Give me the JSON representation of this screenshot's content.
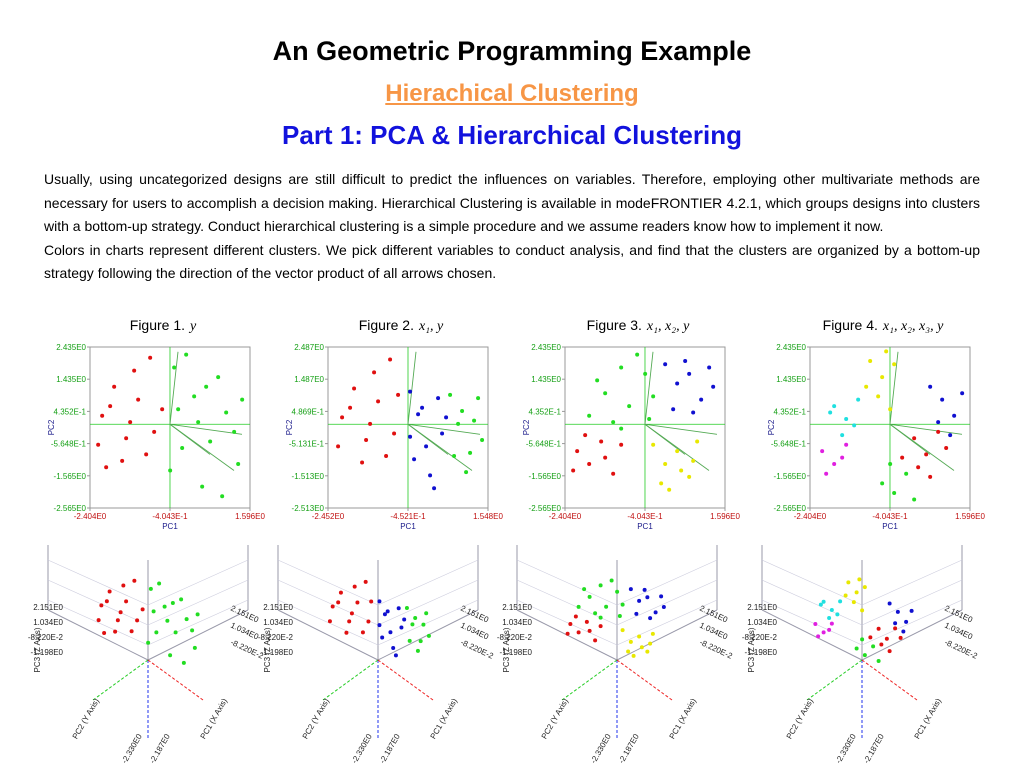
{
  "header": {
    "title": "An Geometric Programming Example",
    "subtitle": "Hierachical Clustering",
    "heading": "Part 1: PCA & Hierarchical Clustering"
  },
  "paragraphs": [
    "Usually, using uncategorized designs are still difficult to predict the influences on variables. Therefore, employing other multivariate methods are necessary for users to accomplish a decision making.  Hierarchical Clustering is available in modeFRONTIER 4.2.1, which groups designs into clusters with a bottom-up strategy.  Conduct hierarchical clustering is a simple procedure and we assume readers know how to implement it now.",
    "Colors in charts represent different clusters. We pick different variables to conduct analysis, and find that the clusters are organized by a bottom-up strategy following the direction of the vector product of all arrows chosen."
  ],
  "chart_data": [
    {
      "type": "scatter",
      "title": "Figure 1.",
      "variables": "y",
      "xlabel": "PC1",
      "ylabel": "PC2",
      "xlim": [
        -2.404,
        1.596
      ],
      "ylim": [
        -2.565,
        2.435
      ],
      "xticks": [
        {
          "value": -2.404,
          "label": "-2.404E0"
        },
        {
          "value": -0.4043,
          "label": "-4.043E-1"
        },
        {
          "value": 1.596,
          "label": "1.596E0"
        }
      ],
      "yticks": [
        {
          "value": 2.435,
          "label": "2.435E0"
        },
        {
          "value": 1.435,
          "label": "1.435E0"
        },
        {
          "value": 0.4352,
          "label": "4.352E-1"
        },
        {
          "value": -0.5648,
          "label": "-5.648E-1"
        },
        {
          "value": -1.565,
          "label": "-1.565E0"
        },
        {
          "value": -2.565,
          "label": "-2.565E0"
        }
      ],
      "series": [
        {
          "color": "#e01010",
          "x": [
            -2.1,
            -1.8,
            -1.5,
            -1.2,
            -0.9,
            -1.6,
            -2.2,
            -0.8,
            -1.3,
            -1.9,
            -0.6,
            -1.0,
            -1.4,
            -2.0
          ],
          "values": [
            0.3,
            1.2,
            -0.4,
            0.8,
            2.1,
            -1.1,
            -0.6,
            -0.2,
            1.7,
            0.6,
            0.5,
            -0.9,
            0.1,
            -1.3
          ]
        },
        {
          "color": "#22dd22",
          "x": [
            -0.3,
            0.2,
            0.6,
            1.0,
            1.3,
            0.4,
            -0.1,
            0.8,
            1.4,
            0.0,
            -0.4,
            0.9,
            0.3,
            1.2,
            0.5,
            -0.2
          ],
          "values": [
            1.8,
            0.9,
            -0.5,
            0.4,
            -1.2,
            -1.9,
            -0.7,
            1.5,
            0.8,
            2.2,
            -1.4,
            -2.2,
            0.1,
            -0.2,
            1.2,
            0.5
          ]
        }
      ]
    },
    {
      "type": "scatter",
      "title": "Figure 2.",
      "variables": "x₁, y",
      "xlabel": "PC1",
      "ylabel": "PC2",
      "xlim": [
        -2.452,
        1.548
      ],
      "ylim": [
        -2.513,
        2.487
      ],
      "xticks": [
        {
          "value": -2.452,
          "label": "-2.452E0"
        },
        {
          "value": -0.4521,
          "label": "-4.521E-1"
        },
        {
          "value": 1.548,
          "label": "1.548E0"
        }
      ],
      "yticks": [
        {
          "value": 2.487,
          "label": "2.487E0"
        },
        {
          "value": 1.487,
          "label": "1.487E0"
        },
        {
          "value": 0.4869,
          "label": "4.869E-1"
        },
        {
          "value": -0.5131,
          "label": "-5.131E-1"
        },
        {
          "value": -1.513,
          "label": "-1.513E0"
        },
        {
          "value": -2.513,
          "label": "-2.513E0"
        }
      ],
      "series": [
        {
          "color": "#e01010",
          "x": [
            -2.1,
            -1.8,
            -1.5,
            -1.2,
            -0.9,
            -1.6,
            -2.2,
            -0.8,
            -1.3,
            -1.9,
            -0.7,
            -1.0,
            -1.4
          ],
          "values": [
            0.3,
            1.2,
            -0.4,
            0.8,
            2.1,
            -1.1,
            -0.6,
            -0.2,
            1.7,
            0.6,
            1.0,
            -0.9,
            0.1
          ]
        },
        {
          "color": "#1010d0",
          "x": [
            -0.4,
            -0.2,
            0.0,
            0.3,
            0.1,
            -0.3,
            0.4,
            -0.1,
            0.2,
            0.5,
            -0.4
          ],
          "values": [
            1.1,
            0.4,
            -0.6,
            0.9,
            -1.5,
            -1.0,
            -0.2,
            0.6,
            -1.9,
            0.3,
            -0.3
          ]
        },
        {
          "color": "#22dd22",
          "x": [
            0.6,
            0.9,
            1.2,
            1.4,
            0.7,
            1.0,
            1.3,
            0.8,
            1.1
          ],
          "values": [
            1.0,
            0.5,
            0.2,
            -0.4,
            -0.9,
            -1.4,
            0.9,
            0.1,
            -0.8
          ]
        }
      ]
    },
    {
      "type": "scatter",
      "title": "Figure 3.",
      "variables": "x₁,  x₂,  y",
      "xlabel": "PC1",
      "ylabel": "PC2",
      "xlim": [
        -2.404,
        1.596
      ],
      "ylim": [
        -2.565,
        2.435
      ],
      "xticks": [
        {
          "value": -2.404,
          "label": "-2.404E0"
        },
        {
          "value": -0.4043,
          "label": "-4.043E-1"
        },
        {
          "value": 1.596,
          "label": "1.596E0"
        }
      ],
      "yticks": [
        {
          "value": 2.435,
          "label": "2.435E0"
        },
        {
          "value": 1.435,
          "label": "1.435E0"
        },
        {
          "value": 0.4352,
          "label": "4.352E-1"
        },
        {
          "value": -0.5648,
          "label": "-5.648E-1"
        },
        {
          "value": -1.565,
          "label": "-1.565E0"
        },
        {
          "value": -2.565,
          "label": "-2.565E0"
        }
      ],
      "series": [
        {
          "color": "#e01010",
          "x": [
            -2.1,
            -1.8,
            -1.5,
            -1.2,
            -1.9,
            -1.4,
            -2.2,
            -1.0
          ],
          "values": [
            -0.8,
            -1.2,
            -0.5,
            -1.5,
            -0.3,
            -1.0,
            -1.4,
            -0.6
          ]
        },
        {
          "color": "#22dd22",
          "x": [
            -1.8,
            -1.4,
            -1.0,
            -0.6,
            -0.2,
            -1.6,
            -1.2,
            -0.8,
            -0.4,
            -1.0,
            -0.3
          ],
          "values": [
            0.3,
            1.0,
            1.8,
            2.2,
            0.9,
            1.4,
            0.1,
            0.6,
            1.6,
            -0.1,
            0.2
          ]
        },
        {
          "color": "#1010d0",
          "x": [
            0.1,
            0.4,
            0.7,
            1.0,
            1.3,
            0.3,
            0.8,
            1.2,
            0.6
          ],
          "values": [
            1.9,
            1.3,
            1.6,
            0.8,
            1.2,
            0.5,
            0.4,
            1.8,
            2.0
          ]
        },
        {
          "color": "#e8e800",
          "x": [
            -0.2,
            0.1,
            0.4,
            0.7,
            0.9,
            0.2,
            0.5,
            0.0,
            0.8
          ],
          "values": [
            -0.6,
            -1.2,
            -0.8,
            -1.6,
            -0.5,
            -2.0,
            -1.4,
            -1.8,
            -1.1
          ]
        }
      ]
    },
    {
      "type": "scatter",
      "title": "Figure 4.",
      "variables": "x₁,  x₂,  x₃,  y",
      "xlabel": "PC1",
      "ylabel": "PC2",
      "xlim": [
        -2.404,
        1.596
      ],
      "ylim": [
        -2.565,
        2.435
      ],
      "xticks": [
        {
          "value": -2.404,
          "label": "-2.404E0"
        },
        {
          "value": -0.4043,
          "label": "-4.043E-1"
        },
        {
          "value": 1.596,
          "label": "1.596E0"
        }
      ],
      "yticks": [
        {
          "value": 2.435,
          "label": "2.435E0"
        },
        {
          "value": 1.435,
          "label": "1.435E0"
        },
        {
          "value": 0.4352,
          "label": "4.352E-1"
        },
        {
          "value": -0.5648,
          "label": "-5.648E-1"
        },
        {
          "value": -1.565,
          "label": "-1.565E0"
        },
        {
          "value": -2.565,
          "label": "-2.565E0"
        }
      ],
      "series": [
        {
          "color": "#e8e800",
          "x": [
            -0.9,
            -0.6,
            -0.3,
            -0.7,
            -0.4,
            -1.0,
            -0.5
          ],
          "values": [
            2.0,
            1.5,
            1.9,
            0.9,
            0.5,
            1.2,
            2.3
          ]
        },
        {
          "color": "#20e0e0",
          "x": [
            -1.8,
            -1.5,
            -1.2,
            -1.6,
            -1.3,
            -1.9
          ],
          "values": [
            0.6,
            0.2,
            0.8,
            -0.3,
            0.0,
            0.4
          ]
        },
        {
          "color": "#e020e0",
          "x": [
            -2.1,
            -1.8,
            -1.5,
            -2.0,
            -1.6
          ],
          "values": [
            -0.8,
            -1.2,
            -0.6,
            -1.5,
            -1.0
          ]
        },
        {
          "color": "#e01010",
          "x": [
            0.2,
            0.5,
            0.8,
            0.3,
            0.6,
            1.0,
            -0.1
          ],
          "values": [
            -0.4,
            -0.9,
            -0.2,
            -1.3,
            -1.6,
            -0.7,
            -1.0
          ]
        },
        {
          "color": "#22dd22",
          "x": [
            -0.6,
            -0.3,
            0.0,
            -0.4,
            0.2
          ],
          "values": [
            -1.8,
            -2.1,
            -1.5,
            -1.2,
            -2.3
          ]
        },
        {
          "color": "#1010d0",
          "x": [
            0.6,
            0.9,
            1.2,
            1.4,
            0.8,
            1.1
          ],
          "values": [
            1.2,
            0.8,
            0.3,
            1.0,
            0.1,
            -0.3
          ]
        }
      ]
    }
  ],
  "plot_3d": {
    "z_ticks": [
      "2.151E0",
      "1.034E0",
      "-8.220E-2",
      "-1.198E0"
    ],
    "right_ticks": [
      "2.151E0",
      "1.034E0",
      "-8.220E-2"
    ],
    "bottom_ticks": [
      "-2.330E0",
      "-2.187E0"
    ],
    "axes": [
      "PC3 (Z Axis)",
      "PC2 (Y Axis)",
      "PC1 (X Axis)"
    ]
  }
}
